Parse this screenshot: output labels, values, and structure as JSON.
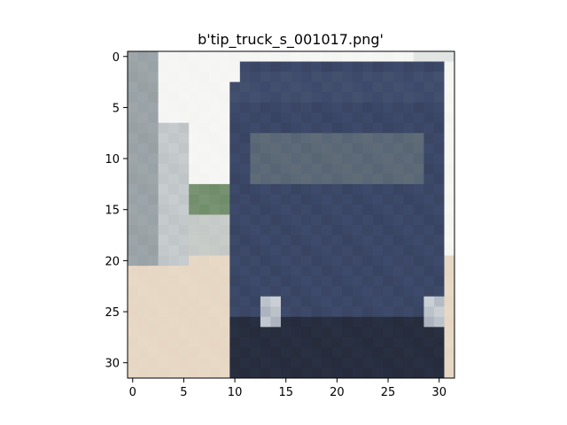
{
  "chart_data": {
    "type": "heatmap",
    "title": "b'tip_truck_s_001017.png'",
    "xlabel": "",
    "ylabel": "",
    "xlim": [
      -0.5,
      31.5
    ],
    "ylim": [
      31.5,
      -0.5
    ],
    "x_ticks": [
      0,
      5,
      10,
      15,
      20,
      25,
      30
    ],
    "y_ticks": [
      0,
      5,
      10,
      15,
      20,
      25,
      30
    ],
    "image_size": [
      32,
      32
    ],
    "grid": false,
    "colors": {
      "sky": "#f4f4f2",
      "truck_body": "#3d4a6b",
      "truck_dark": "#262c3c",
      "windshield": "#5f6c78",
      "pole": "#9ea6aa",
      "foliage": "#708d6a",
      "road": "#e6d6c3",
      "headlight": "#c9cfd5",
      "axes_frame": "#000000"
    }
  }
}
